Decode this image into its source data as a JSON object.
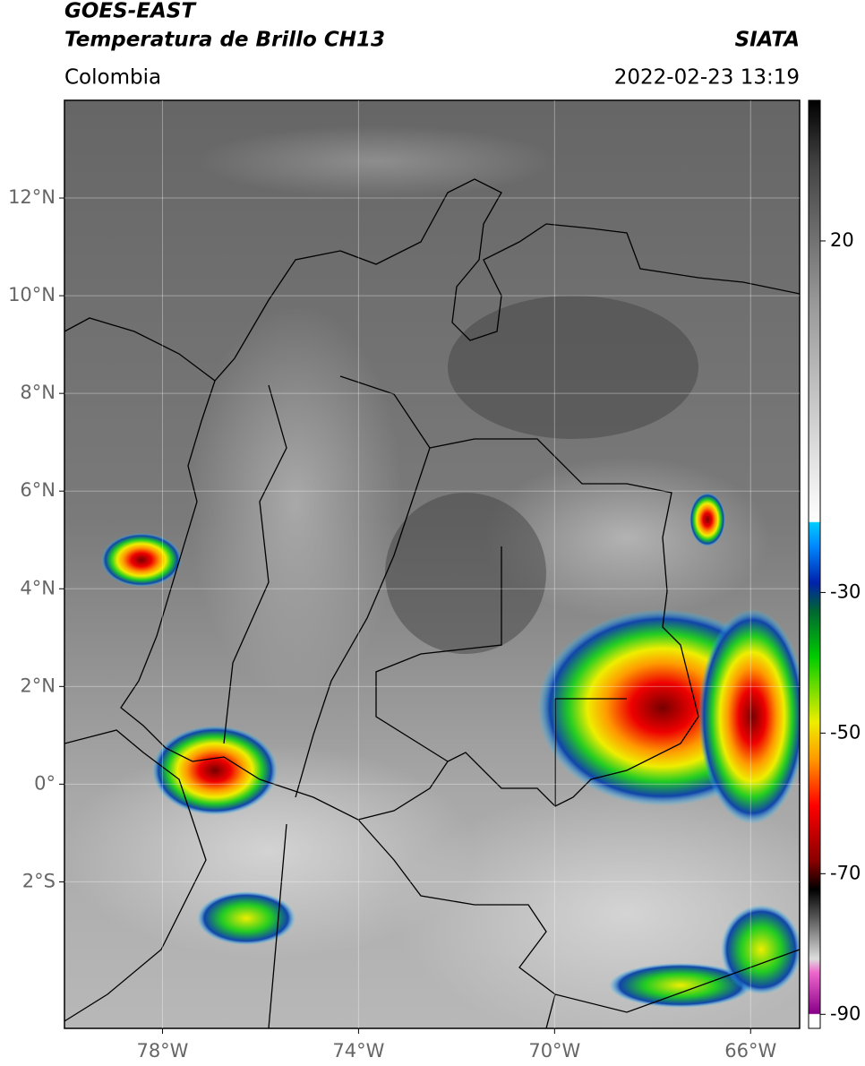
{
  "map": {
    "header": {
      "title": "GOES-EAST",
      "product": "Temperatura de Brillo CH13",
      "source": "SIATA",
      "region": "Colombia",
      "datetime": "2022-02-23 13:19"
    },
    "lonlim": [
      -80,
      -65
    ],
    "latlim": [
      -5,
      14
    ],
    "lonticks": [
      {
        "value": -78,
        "label": "78°W"
      },
      {
        "value": -74,
        "label": "74°W"
      },
      {
        "value": -70,
        "label": "70°W"
      },
      {
        "value": -66,
        "label": "66°W"
      }
    ],
    "latticks": [
      {
        "value": 12,
        "label": "12°N"
      },
      {
        "value": 10,
        "label": "10°N"
      },
      {
        "value": 8,
        "label": "8°N"
      },
      {
        "value": 6,
        "label": "6°N"
      },
      {
        "value": 4,
        "label": "4°N"
      },
      {
        "value": 2,
        "label": "2°N"
      },
      {
        "value": 0,
        "label": "0°"
      },
      {
        "value": -2,
        "label": "2°S"
      }
    ],
    "grid": true,
    "colorbar": {
      "clim": [
        -92,
        40
      ],
      "ticks": [
        20,
        -30,
        -50,
        -70,
        -90
      ]
    }
  }
}
